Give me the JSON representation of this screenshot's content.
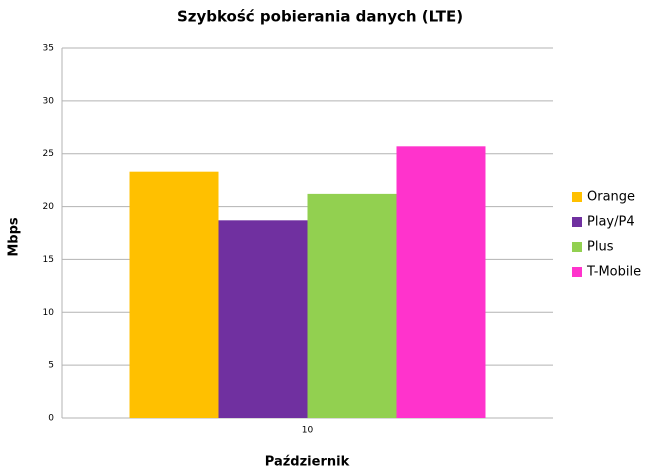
{
  "chart_data": {
    "type": "bar",
    "title": "Szybkość pobierania danych (LTE)",
    "x_label": "Październik",
    "y_label": "Mbps",
    "categories": [
      "10"
    ],
    "series": [
      {
        "name": "Orange",
        "color": "#ffc000",
        "values": [
          23.3
        ]
      },
      {
        "name": "Play/P4",
        "color": "#7030a0",
        "values": [
          18.7
        ]
      },
      {
        "name": "Plus",
        "color": "#92d050",
        "values": [
          21.2
        ]
      },
      {
        "name": "T-Mobile",
        "color": "#ff33cc",
        "values": [
          25.7
        ]
      }
    ],
    "ylim": [
      0,
      35
    ],
    "yticks": [
      0,
      5,
      10,
      15,
      20,
      25,
      30,
      35
    ],
    "grid": true,
    "legend": "right"
  }
}
